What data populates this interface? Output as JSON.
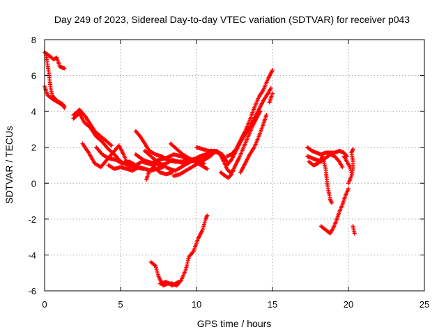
{
  "chart_data": {
    "type": "scatter",
    "title": "Day 249 of 2023, Sidereal Day-to-day VTEC variation (SDTVAR) for receiver p043",
    "xlabel": "GPS time / hours",
    "ylabel": "SDTVAR / TECUs",
    "xlim": [
      0,
      25
    ],
    "ylim": [
      -6,
      8
    ],
    "xticks": [
      "0",
      "5",
      "10",
      "15",
      "20",
      "25"
    ],
    "yticks": [
      "-6",
      "-4",
      "-2",
      "0",
      "2",
      "4",
      "6",
      "8"
    ],
    "grid": true,
    "marker": "+",
    "colors": {
      "series": "#ff0000",
      "axes": "#000000",
      "grid": "#a0a0a0"
    },
    "series": [
      {
        "name": "SDTVAR",
        "tracks": [
          [
            [
              0.0,
              7.3
            ],
            [
              0.3,
              7.1
            ],
            [
              0.6,
              6.9
            ],
            [
              0.8,
              7.0
            ],
            [
              1.0,
              6.5
            ],
            [
              1.3,
              6.4
            ]
          ],
          [
            [
              0.1,
              7.1
            ],
            [
              0.2,
              6.6
            ],
            [
              0.3,
              6.0
            ],
            [
              0.4,
              5.3
            ],
            [
              0.5,
              4.9
            ],
            [
              0.8,
              4.6
            ],
            [
              1.2,
              4.4
            ],
            [
              1.3,
              4.2
            ]
          ],
          [
            [
              0.0,
              5.4
            ],
            [
              0.2,
              4.9
            ],
            [
              0.5,
              4.7
            ],
            [
              0.9,
              4.5
            ],
            [
              1.3,
              4.3
            ]
          ],
          [
            [
              1.9,
              3.8
            ],
            [
              2.3,
              4.1
            ],
            [
              2.7,
              3.7
            ],
            [
              3.0,
              3.3
            ],
            [
              3.3,
              2.9
            ],
            [
              3.7,
              2.6
            ],
            [
              4.0,
              2.4
            ],
            [
              4.4,
              2.1
            ]
          ],
          [
            [
              1.9,
              3.6
            ],
            [
              2.3,
              3.9
            ],
            [
              2.6,
              3.4
            ],
            [
              3.0,
              3.1
            ],
            [
              3.4,
              2.6
            ],
            [
              3.8,
              2.3
            ],
            [
              4.2,
              1.9
            ],
            [
              4.6,
              1.6
            ],
            [
              5.0,
              1.2
            ],
            [
              5.5,
              1.0
            ],
            [
              6.0,
              0.9
            ],
            [
              6.5,
              0.8
            ]
          ],
          [
            [
              2.5,
              2.2
            ],
            [
              2.9,
              1.7
            ],
            [
              3.3,
              1.1
            ],
            [
              3.7,
              0.9
            ],
            [
              4.1,
              1.3
            ],
            [
              4.5,
              1.7
            ],
            [
              4.9,
              2.1
            ],
            [
              5.2,
              1.6
            ],
            [
              5.5,
              1.0
            ],
            [
              5.9,
              0.9
            ]
          ],
          [
            [
              3.4,
              2.0
            ],
            [
              3.8,
              1.6
            ],
            [
              4.2,
              1.4
            ],
            [
              4.7,
              1.3
            ],
            [
              5.1,
              1.1
            ],
            [
              5.6,
              1.2
            ],
            [
              6.0,
              1.0
            ],
            [
              6.4,
              1.2
            ],
            [
              6.8,
              1.1
            ],
            [
              7.2,
              1.0
            ]
          ],
          [
            [
              4.2,
              1.0
            ],
            [
              4.6,
              0.8
            ],
            [
              5.0,
              0.9
            ],
            [
              5.4,
              0.8
            ],
            [
              5.8,
              0.7
            ],
            [
              6.2,
              0.9
            ],
            [
              6.6,
              0.8
            ],
            [
              7.0,
              0.7
            ],
            [
              7.4,
              0.8
            ],
            [
              7.8,
              0.9
            ]
          ],
          [
            [
              6.0,
              1.6
            ],
            [
              6.5,
              1.3
            ],
            [
              7.0,
              1.1
            ],
            [
              7.5,
              1.3
            ],
            [
              8.0,
              1.4
            ],
            [
              8.5,
              1.6
            ],
            [
              9.0,
              1.5
            ],
            [
              9.5,
              1.3
            ],
            [
              10.0,
              1.2
            ],
            [
              10.5,
              1.1
            ]
          ],
          [
            [
              6.0,
              2.9
            ],
            [
              6.3,
              2.6
            ],
            [
              6.6,
              2.2
            ],
            [
              6.9,
              1.8
            ],
            [
              7.3,
              1.6
            ],
            [
              7.7,
              1.5
            ],
            [
              8.1,
              1.3
            ],
            [
              8.6,
              1.2
            ],
            [
              9.1,
              1.2
            ],
            [
              9.6,
              1.3
            ],
            [
              10.1,
              1.4
            ],
            [
              10.6,
              1.5
            ],
            [
              11.0,
              1.6
            ]
          ],
          [
            [
              6.6,
              1.8
            ],
            [
              7.0,
              1.5
            ],
            [
              7.4,
              1.2
            ],
            [
              7.8,
              1.0
            ],
            [
              8.2,
              0.8
            ],
            [
              8.6,
              0.7
            ],
            [
              9.0,
              0.9
            ],
            [
              9.4,
              1.1
            ],
            [
              9.8,
              1.3
            ],
            [
              10.2,
              1.5
            ],
            [
              10.6,
              1.6
            ],
            [
              11.0,
              1.8
            ],
            [
              11.4,
              1.7
            ],
            [
              11.8,
              1.5
            ]
          ],
          [
            [
              6.8,
              1.2
            ],
            [
              7.2,
              1.1
            ],
            [
              7.6,
              1.0
            ],
            [
              8.0,
              1.1
            ],
            [
              8.4,
              1.3
            ],
            [
              8.8,
              1.2
            ],
            [
              9.2,
              1.1
            ],
            [
              9.6,
              1.2
            ],
            [
              10.0,
              1.3
            ],
            [
              10.4,
              1.2
            ]
          ],
          [
            [
              8.3,
              2.2
            ],
            [
              8.7,
              1.9
            ],
            [
              9.1,
              1.6
            ],
            [
              9.5,
              1.4
            ],
            [
              9.9,
              1.2
            ],
            [
              10.3,
              1.0
            ],
            [
              10.7,
              0.8
            ]
          ],
          [
            [
              6.7,
              0.2
            ],
            [
              6.9,
              0.7
            ],
            [
              7.2,
              0.9
            ],
            [
              7.6,
              0.6
            ],
            [
              8.0,
              0.5
            ],
            [
              8.4,
              0.6
            ]
          ],
          [
            [
              8.5,
              0.4
            ],
            [
              8.9,
              0.5
            ],
            [
              9.3,
              0.7
            ],
            [
              9.7,
              0.9
            ],
            [
              10.1,
              1.1
            ],
            [
              10.5,
              1.3
            ],
            [
              10.9,
              1.5
            ],
            [
              11.3,
              1.8
            ],
            [
              11.7,
              1.6
            ],
            [
              12.0,
              1.2
            ]
          ],
          [
            [
              10.0,
              2.0
            ],
            [
              10.4,
              1.9
            ],
            [
              10.8,
              1.8
            ],
            [
              11.2,
              1.8
            ],
            [
              11.5,
              1.7
            ],
            [
              11.8,
              1.2
            ],
            [
              12.0,
              0.8
            ],
            [
              12.2,
              0.6
            ],
            [
              12.4,
              0.7
            ]
          ],
          [
            [
              11.6,
              0.6
            ],
            [
              11.9,
              0.4
            ],
            [
              12.1,
              0.3
            ],
            [
              12.3,
              0.5
            ],
            [
              12.5,
              0.9
            ],
            [
              12.8,
              1.4
            ],
            [
              13.1,
              2.0
            ],
            [
              13.4,
              2.6
            ],
            [
              13.7,
              3.2
            ],
            [
              14.0,
              3.7
            ],
            [
              14.2,
              4.0
            ]
          ],
          [
            [
              12.0,
              1.5
            ],
            [
              12.3,
              1.6
            ],
            [
              12.6,
              1.9
            ],
            [
              12.9,
              2.4
            ],
            [
              13.2,
              2.9
            ],
            [
              13.5,
              3.5
            ],
            [
              13.8,
              4.2
            ],
            [
              14.1,
              4.8
            ],
            [
              14.4,
              5.2
            ],
            [
              14.7,
              5.8
            ],
            [
              15.0,
              6.3
            ]
          ],
          [
            [
              12.0,
              1.0
            ],
            [
              12.3,
              1.3
            ],
            [
              12.6,
              1.8
            ],
            [
              12.9,
              2.3
            ],
            [
              13.2,
              2.7
            ],
            [
              13.5,
              3.1
            ],
            [
              13.8,
              3.6
            ],
            [
              14.1,
              4.1
            ],
            [
              14.4,
              4.6
            ],
            [
              14.7,
              5.0
            ],
            [
              14.9,
              5.3
            ]
          ],
          [
            [
              12.9,
              0.6
            ],
            [
              13.2,
              1.1
            ],
            [
              13.5,
              1.6
            ],
            [
              13.8,
              2.0
            ],
            [
              14.1,
              2.6
            ],
            [
              14.4,
              3.3
            ],
            [
              14.6,
              3.8
            ]
          ],
          [
            [
              14.8,
              4.5
            ],
            [
              15.0,
              5.0
            ]
          ],
          [
            [
              7.0,
              -4.4
            ],
            [
              7.3,
              -4.6
            ],
            [
              7.5,
              -5.2
            ],
            [
              7.8,
              -5.7
            ],
            [
              8.1,
              -5.6
            ],
            [
              8.4,
              -5.6
            ],
            [
              8.7,
              -5.7
            ],
            [
              9.0,
              -5.4
            ],
            [
              9.3,
              -4.8
            ],
            [
              9.5,
              -4.1
            ],
            [
              9.8,
              -3.8
            ],
            [
              10.1,
              -3.1
            ],
            [
              10.4,
              -2.6
            ],
            [
              10.6,
              -2.0
            ],
            [
              10.7,
              -1.8
            ]
          ],
          [
            [
              7.6,
              -5.6
            ],
            [
              8.0,
              -5.5
            ],
            [
              8.4,
              -5.7
            ],
            [
              8.8,
              -5.5
            ]
          ],
          [
            [
              17.3,
              2.0
            ],
            [
              17.6,
              1.8
            ],
            [
              17.9,
              1.7
            ],
            [
              18.2,
              1.6
            ],
            [
              18.5,
              1.7
            ],
            [
              18.8,
              1.7
            ],
            [
              19.1,
              1.7
            ],
            [
              19.4,
              1.8
            ],
            [
              19.7,
              1.7
            ],
            [
              19.9,
              1.5
            ]
          ],
          [
            [
              17.3,
              1.5
            ],
            [
              17.6,
              1.4
            ],
            [
              17.9,
              1.3
            ],
            [
              18.2,
              1.2
            ],
            [
              18.5,
              1.4
            ],
            [
              18.8,
              1.6
            ],
            [
              19.1,
              1.5
            ],
            [
              19.4,
              1.2
            ],
            [
              19.6,
              0.9
            ]
          ],
          [
            [
              17.4,
              1.2
            ],
            [
              17.7,
              1.0
            ],
            [
              18.0,
              1.1
            ],
            [
              18.3,
              1.5
            ],
            [
              18.5,
              0.8
            ],
            [
              18.6,
              0.0
            ],
            [
              18.7,
              -0.5
            ],
            [
              18.8,
              -0.9
            ],
            [
              18.9,
              -1.1
            ]
          ],
          [
            [
              18.2,
              -2.4
            ],
            [
              18.5,
              -2.6
            ],
            [
              18.8,
              -2.8
            ],
            [
              19.0,
              -2.5
            ],
            [
              19.2,
              -2.1
            ],
            [
              19.4,
              -1.6
            ],
            [
              19.6,
              -1.2
            ],
            [
              19.8,
              -0.7
            ],
            [
              20.0,
              -0.3
            ]
          ],
          [
            [
              20.0,
              0.0
            ],
            [
              20.2,
              0.4
            ],
            [
              20.3,
              0.8
            ],
            [
              20.3,
              1.2
            ],
            [
              20.2,
              1.7
            ],
            [
              20.3,
              1.9
            ]
          ],
          [
            [
              19.7,
              1.5
            ],
            [
              19.9,
              1.2
            ],
            [
              20.1,
              0.9
            ],
            [
              20.2,
              0.6
            ]
          ],
          [
            [
              20.3,
              -2.4
            ],
            [
              20.4,
              -2.8
            ]
          ]
        ]
      }
    ]
  }
}
